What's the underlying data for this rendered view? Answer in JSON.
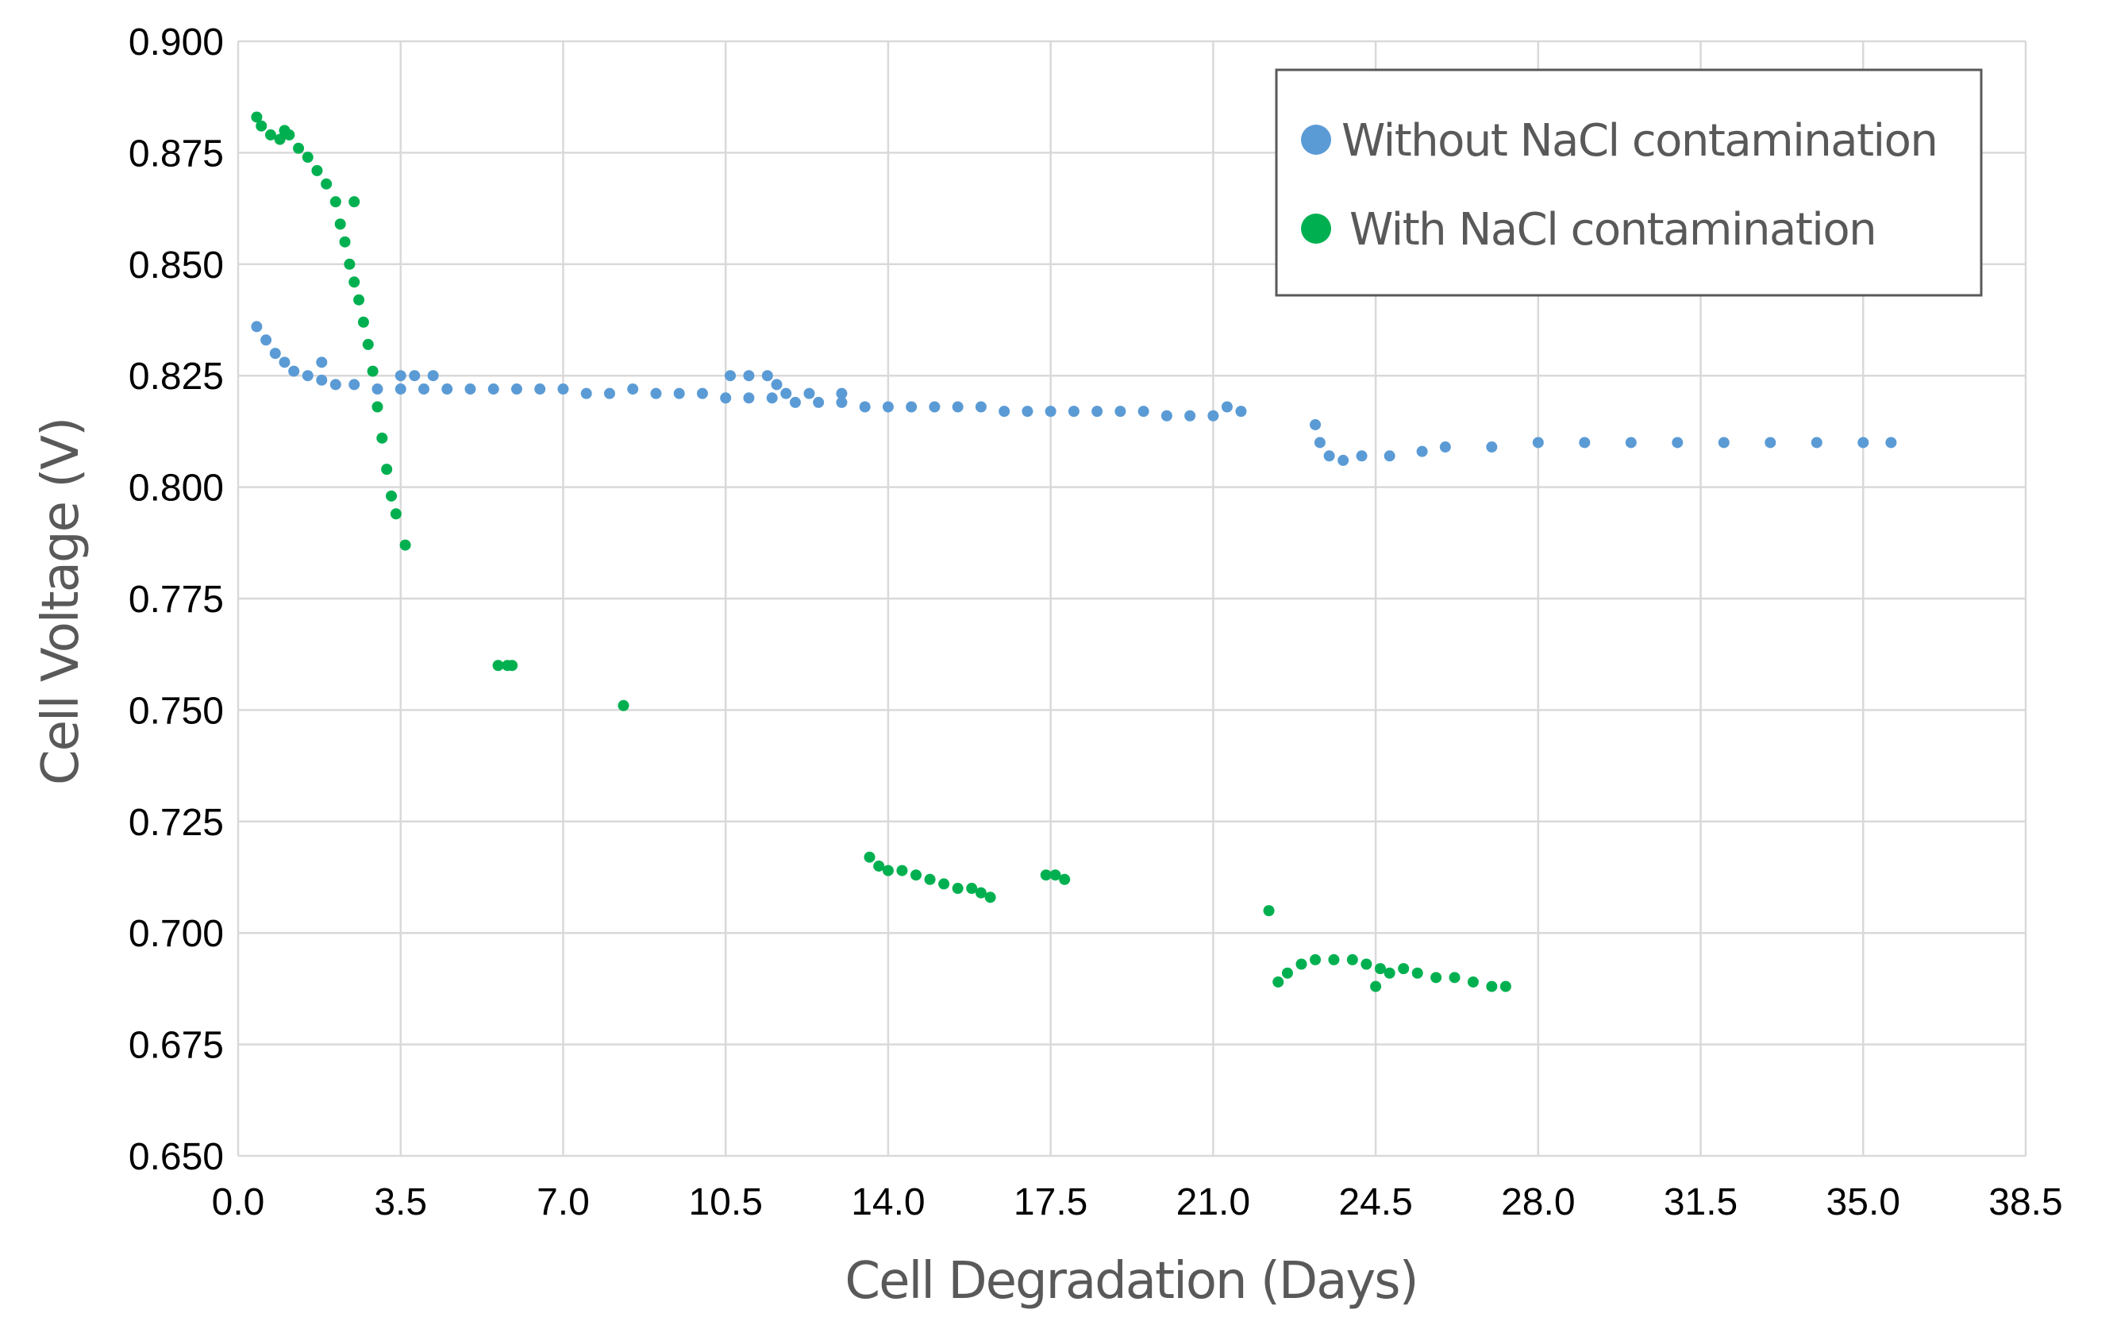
{
  "chart_data": {
    "type": "scatter",
    "title": "",
    "xlabel": "Cell Degradation (Days)",
    "ylabel": "Cell Voltage (V)",
    "xlim": [
      0.0,
      38.5
    ],
    "ylim": [
      0.65,
      0.9
    ],
    "x_ticks": [
      "0.0",
      "3.5",
      "7.0",
      "10.5",
      "14.0",
      "17.5",
      "21.0",
      "24.5",
      "28.0",
      "31.5",
      "35.0",
      "38.5"
    ],
    "y_ticks": [
      "0.650",
      "0.675",
      "0.700",
      "0.725",
      "0.750",
      "0.775",
      "0.800",
      "0.825",
      "0.850",
      "0.875",
      "0.900"
    ],
    "grid": true,
    "legend_position": "top-right",
    "series": [
      {
        "name": "Without NaCl contamination",
        "color": "#5b9bd5",
        "points": [
          [
            0.4,
            0.836
          ],
          [
            0.6,
            0.833
          ],
          [
            0.8,
            0.83
          ],
          [
            1.0,
            0.828
          ],
          [
            1.2,
            0.826
          ],
          [
            1.5,
            0.825
          ],
          [
            1.8,
            0.824
          ],
          [
            2.1,
            0.823
          ],
          [
            2.5,
            0.823
          ],
          [
            3.0,
            0.822
          ],
          [
            3.5,
            0.822
          ],
          [
            4.0,
            0.822
          ],
          [
            4.5,
            0.822
          ],
          [
            5.0,
            0.822
          ],
          [
            5.5,
            0.822
          ],
          [
            6.0,
            0.822
          ],
          [
            6.5,
            0.822
          ],
          [
            7.0,
            0.822
          ],
          [
            7.5,
            0.821
          ],
          [
            8.0,
            0.821
          ],
          [
            8.5,
            0.822
          ],
          [
            9.0,
            0.821
          ],
          [
            9.5,
            0.821
          ],
          [
            10.0,
            0.821
          ],
          [
            10.5,
            0.82
          ],
          [
            11.0,
            0.82
          ],
          [
            11.5,
            0.82
          ],
          [
            12.0,
            0.819
          ],
          [
            12.5,
            0.819
          ],
          [
            13.0,
            0.819
          ],
          [
            13.5,
            0.818
          ],
          [
            14.0,
            0.818
          ],
          [
            14.5,
            0.818
          ],
          [
            15.0,
            0.818
          ],
          [
            15.5,
            0.818
          ],
          [
            16.0,
            0.818
          ],
          [
            16.5,
            0.817
          ],
          [
            17.0,
            0.817
          ],
          [
            17.5,
            0.817
          ],
          [
            18.0,
            0.817
          ],
          [
            18.5,
            0.817
          ],
          [
            19.0,
            0.817
          ],
          [
            19.5,
            0.817
          ],
          [
            20.0,
            0.816
          ],
          [
            20.5,
            0.816
          ],
          [
            21.0,
            0.816
          ],
          [
            21.3,
            0.818
          ],
          [
            21.6,
            0.817
          ],
          [
            3.5,
            0.825
          ],
          [
            3.8,
            0.825
          ],
          [
            4.2,
            0.825
          ],
          [
            1.8,
            0.828
          ],
          [
            10.6,
            0.825
          ],
          [
            11.0,
            0.825
          ],
          [
            11.4,
            0.825
          ],
          [
            11.6,
            0.823
          ],
          [
            11.8,
            0.821
          ],
          [
            12.3,
            0.821
          ],
          [
            13.0,
            0.821
          ],
          [
            23.2,
            0.814
          ],
          [
            23.3,
            0.81
          ],
          [
            23.5,
            0.807
          ],
          [
            23.8,
            0.806
          ],
          [
            24.2,
            0.807
          ],
          [
            24.8,
            0.807
          ],
          [
            25.5,
            0.808
          ],
          [
            26.0,
            0.809
          ],
          [
            27.0,
            0.809
          ],
          [
            28.0,
            0.81
          ],
          [
            29.0,
            0.81
          ],
          [
            30.0,
            0.81
          ],
          [
            31.0,
            0.81
          ],
          [
            32.0,
            0.81
          ],
          [
            33.0,
            0.81
          ],
          [
            34.0,
            0.81
          ],
          [
            35.0,
            0.81
          ],
          [
            35.6,
            0.81
          ]
        ]
      },
      {
        "name": "With NaCl contamination",
        "color": "#00b050",
        "points": [
          [
            0.4,
            0.883
          ],
          [
            0.5,
            0.881
          ],
          [
            0.7,
            0.879
          ],
          [
            0.9,
            0.878
          ],
          [
            1.0,
            0.88
          ],
          [
            1.1,
            0.879
          ],
          [
            1.3,
            0.876
          ],
          [
            1.5,
            0.874
          ],
          [
            1.7,
            0.871
          ],
          [
            1.9,
            0.868
          ],
          [
            2.1,
            0.864
          ],
          [
            2.2,
            0.859
          ],
          [
            2.3,
            0.855
          ],
          [
            2.4,
            0.85
          ],
          [
            2.5,
            0.846
          ],
          [
            2.6,
            0.842
          ],
          [
            2.7,
            0.837
          ],
          [
            2.8,
            0.832
          ],
          [
            2.9,
            0.826
          ],
          [
            3.0,
            0.818
          ],
          [
            3.1,
            0.811
          ],
          [
            3.2,
            0.804
          ],
          [
            3.3,
            0.798
          ],
          [
            3.4,
            0.794
          ],
          [
            2.5,
            0.864
          ],
          [
            3.6,
            0.787
          ],
          [
            5.6,
            0.76
          ],
          [
            5.8,
            0.76
          ],
          [
            5.9,
            0.76
          ],
          [
            8.3,
            0.751
          ],
          [
            13.6,
            0.717
          ],
          [
            13.8,
            0.715
          ],
          [
            14.0,
            0.714
          ],
          [
            14.3,
            0.714
          ],
          [
            14.6,
            0.713
          ],
          [
            14.9,
            0.712
          ],
          [
            15.2,
            0.711
          ],
          [
            15.5,
            0.71
          ],
          [
            15.8,
            0.71
          ],
          [
            16.0,
            0.709
          ],
          [
            16.2,
            0.708
          ],
          [
            17.4,
            0.713
          ],
          [
            17.6,
            0.713
          ],
          [
            17.8,
            0.712
          ],
          [
            22.2,
            0.705
          ],
          [
            22.4,
            0.689
          ],
          [
            22.6,
            0.691
          ],
          [
            22.9,
            0.693
          ],
          [
            23.2,
            0.694
          ],
          [
            23.6,
            0.694
          ],
          [
            24.0,
            0.694
          ],
          [
            24.3,
            0.693
          ],
          [
            24.6,
            0.692
          ],
          [
            24.5,
            0.688
          ],
          [
            24.8,
            0.691
          ],
          [
            25.1,
            0.692
          ],
          [
            25.4,
            0.691
          ],
          [
            25.8,
            0.69
          ],
          [
            26.2,
            0.69
          ],
          [
            26.6,
            0.689
          ],
          [
            27.0,
            0.688
          ],
          [
            27.3,
            0.688
          ]
        ]
      }
    ]
  }
}
